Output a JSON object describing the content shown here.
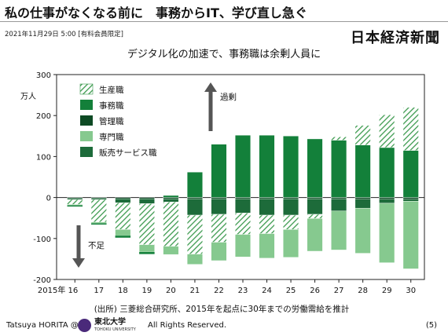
{
  "header": {
    "title": "私の仕事がなくなる前に　事務からIT、学び直し急ぐ",
    "dateline": "2021年11月29日 5:00 [有料会員限定]",
    "brand": "日本経済新聞"
  },
  "footer": {
    "author": "Tatsuya HORITA @",
    "univ": "東北大学",
    "univ_en": "TOHOKU UNIVERSITY",
    "rights": "All Rights Reserved.",
    "page": "(5)"
  },
  "colors": {
    "production": "#3d9a4f",
    "clerical": "#13803a",
    "management": "#0d4a24",
    "specialist": "#86c98f",
    "sales": "#1d6b3a",
    "plot_bg": "#ffffff"
  },
  "chart_data": {
    "type": "bar",
    "stacked": true,
    "title": "デジタル化の加速で、事務職は余剰人員に",
    "unit_label": "万人",
    "ylim": [
      -200,
      300
    ],
    "yticks": [
      "300",
      "200",
      "100",
      "0",
      "-100",
      "-200"
    ],
    "categories": [
      "2015年 16",
      "17",
      "18",
      "19",
      "20",
      "21",
      "22",
      "23",
      "24",
      "25",
      "26",
      "27",
      "28",
      "29",
      "30"
    ],
    "series": [
      {
        "name": "生産職",
        "pattern": "hatch",
        "values": [
          -12,
          -55,
          -65,
          -100,
          -108,
          -95,
          -68,
          -52,
          -45,
          -35,
          -10,
          8,
          48,
          80,
          105
        ]
      },
      {
        "name": "事務職",
        "pattern": "solid",
        "values": [
          -3,
          -3,
          -5,
          -5,
          5,
          62,
          130,
          152,
          152,
          150,
          143,
          140,
          128,
          122,
          115
        ]
      },
      {
        "name": "管理職",
        "pattern": "solid",
        "values": [
          -2,
          -2,
          -3,
          -3,
          -3,
          -3,
          -3,
          -3,
          -3,
          -3,
          -3,
          -3,
          -4,
          -4,
          -4
        ]
      },
      {
        "name": "専門職",
        "pattern": "solid",
        "values": [
          -2,
          -3,
          -15,
          -18,
          -20,
          -25,
          -45,
          -55,
          -60,
          -68,
          -80,
          -95,
          -110,
          -145,
          -165
        ]
      },
      {
        "name": "販売サービス職",
        "pattern": "solid",
        "values": [
          -3,
          -3,
          -10,
          -12,
          -8,
          -40,
          -38,
          -35,
          -40,
          -40,
          -38,
          -30,
          -22,
          -10,
          -5
        ]
      }
    ],
    "annotations": {
      "up": "過剰",
      "down": "不足",
      "source": "(出所) 三菱総合研究所、2015年を起点に30年までの労働需給を推計"
    },
    "grid": false,
    "legend_position": "top-left"
  }
}
